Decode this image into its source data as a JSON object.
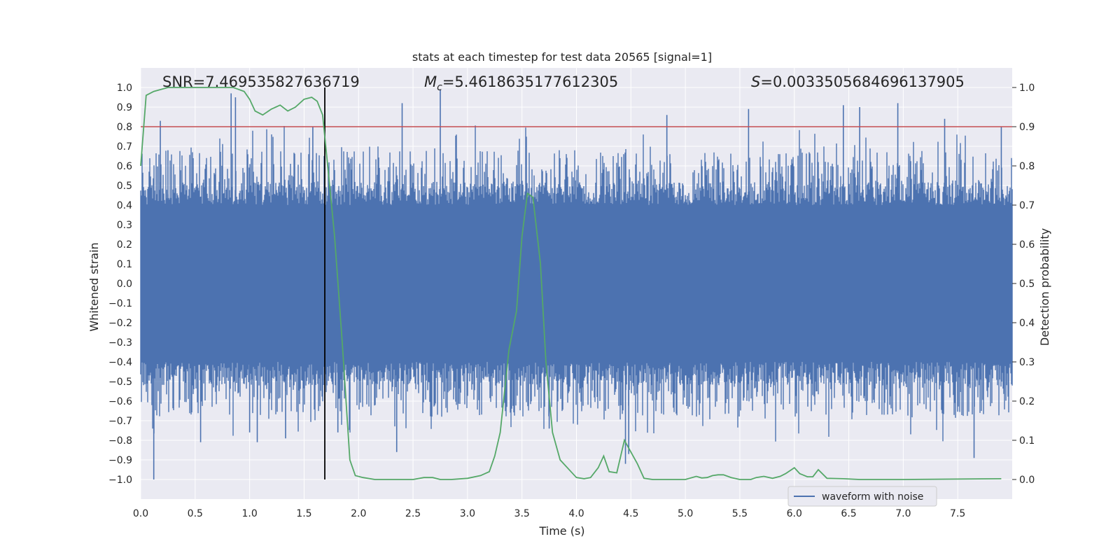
{
  "chart_data": {
    "type": "line",
    "title": "stats at each timestep for test data 20565 [signal=1]",
    "xlabel": "Time (s)",
    "ylabel": "Whitened strain",
    "y2label": "Detection probability",
    "xlim": [
      0.0,
      8.0
    ],
    "ylim": [
      -1.1,
      1.1
    ],
    "y2lim": [
      -0.05,
      1.05
    ],
    "xticks": [
      "0.0",
      "0.5",
      "1.0",
      "1.5",
      "2.0",
      "2.5",
      "3.0",
      "3.5",
      "4.0",
      "4.5",
      "5.0",
      "5.5",
      "6.0",
      "6.5",
      "7.0",
      "7.5"
    ],
    "yticks": [
      "1.0",
      "0.9",
      "0.8",
      "0.7",
      "0.6",
      "0.5",
      "0.4",
      "0.3",
      "0.2",
      "0.1",
      "0.0",
      "-0.1",
      "-0.2",
      "-0.3",
      "-0.4",
      "-0.5",
      "-0.6",
      "-0.7",
      "-0.8",
      "-0.9",
      "-1.0"
    ],
    "y2ticks": [
      "1.0",
      "0.9",
      "0.8",
      "0.7",
      "0.6",
      "0.5",
      "0.4",
      "0.3",
      "0.2",
      "0.1",
      "0.0"
    ],
    "grid": true,
    "annotations": {
      "snr": "SNR=7.469535827636719",
      "mc_prefix": "M",
      "mc_sub": "c",
      "mc_value": "=5.4618635177612305",
      "s_prefix": "S",
      "s_value": "=0.0033505684696137905"
    },
    "threshold_y2": 0.9,
    "marker_x": 1.69,
    "legend": {
      "label": "waveform with noise",
      "loc": "lower-right"
    },
    "colors": {
      "waveform": "#4c72b0",
      "probability": "#55a868",
      "threshold": "#c44e52",
      "marker": "#000000",
      "plot_bg": "#eaeaf2",
      "grid": "#ffffff"
    },
    "series": [
      {
        "name": "waveform with noise",
        "kind": "noise-envelope",
        "envelope": 0.4,
        "spikes": [
          {
            "x": 0.12,
            "y": -1.0
          },
          {
            "x": 0.18,
            "y": 0.83
          },
          {
            "x": 0.25,
            "y": 0.68
          },
          {
            "x": 0.55,
            "y": -0.81
          },
          {
            "x": 0.83,
            "y": 0.97
          },
          {
            "x": 0.87,
            "y": 0.95
          },
          {
            "x": 1.0,
            "y": -0.76
          },
          {
            "x": 1.07,
            "y": -0.81
          },
          {
            "x": 1.33,
            "y": -0.79
          },
          {
            "x": 1.58,
            "y": 0.8
          },
          {
            "x": 1.81,
            "y": -0.76
          },
          {
            "x": 2.35,
            "y": -0.86
          },
          {
            "x": 2.4,
            "y": 0.92
          },
          {
            "x": 2.75,
            "y": 0.99
          },
          {
            "x": 3.75,
            "y": -0.74
          },
          {
            "x": 4.45,
            "y": -0.92
          },
          {
            "x": 4.48,
            "y": -0.87
          },
          {
            "x": 4.83,
            "y": 0.86
          },
          {
            "x": 5.58,
            "y": 0.89
          },
          {
            "x": 6.45,
            "y": 0.91
          },
          {
            "x": 6.6,
            "y": 0.9
          },
          {
            "x": 6.95,
            "y": 0.92
          },
          {
            "x": 7.38,
            "y": 0.84
          },
          {
            "x": 7.65,
            "y": -0.89
          },
          {
            "x": 7.9,
            "y": 0.8
          }
        ]
      },
      {
        "name": "detection probability",
        "axis": "right",
        "x": [
          0.0,
          0.05,
          0.12,
          0.25,
          0.5,
          0.7,
          0.85,
          0.95,
          1.0,
          1.05,
          1.12,
          1.2,
          1.28,
          1.35,
          1.42,
          1.5,
          1.57,
          1.62,
          1.67,
          1.72,
          1.78,
          1.85,
          1.92,
          1.97,
          2.04,
          2.15,
          2.5,
          2.6,
          2.68,
          2.75,
          2.85,
          3.0,
          3.12,
          3.2,
          3.25,
          3.3,
          3.38,
          3.45,
          3.5,
          3.55,
          3.6,
          3.67,
          3.72,
          3.78,
          3.85,
          3.95,
          4.0,
          4.07,
          4.13,
          4.2,
          4.25,
          4.3,
          4.37,
          4.44,
          4.5,
          4.56,
          4.62,
          4.7,
          4.8,
          5.0,
          5.1,
          5.15,
          5.2,
          5.25,
          5.3,
          5.35,
          5.42,
          5.5,
          5.6,
          5.65,
          5.72,
          5.8,
          5.87,
          5.92,
          6.0,
          6.05,
          6.12,
          6.17,
          6.22,
          6.3,
          6.45,
          6.6,
          7.0,
          7.9
        ],
        "y": [
          0.8,
          0.98,
          0.99,
          1.0,
          1.0,
          1.0,
          1.0,
          0.99,
          0.97,
          0.94,
          0.93,
          0.945,
          0.955,
          0.94,
          0.95,
          0.97,
          0.975,
          0.965,
          0.93,
          0.79,
          0.62,
          0.35,
          0.05,
          0.01,
          0.005,
          0.0,
          0.0,
          0.005,
          0.005,
          0.0,
          0.0,
          0.003,
          0.01,
          0.02,
          0.06,
          0.12,
          0.33,
          0.43,
          0.62,
          0.73,
          0.72,
          0.55,
          0.3,
          0.12,
          0.05,
          0.02,
          0.005,
          0.002,
          0.005,
          0.03,
          0.06,
          0.02,
          0.017,
          0.1,
          0.07,
          0.04,
          0.003,
          0.0,
          0.0,
          0.0,
          0.008,
          0.004,
          0.005,
          0.01,
          0.012,
          0.012,
          0.005,
          0.0,
          0.0,
          0.005,
          0.008,
          0.003,
          0.008,
          0.015,
          0.03,
          0.015,
          0.007,
          0.007,
          0.025,
          0.003,
          0.002,
          0.0,
          0.0,
          0.002
        ]
      }
    ]
  }
}
